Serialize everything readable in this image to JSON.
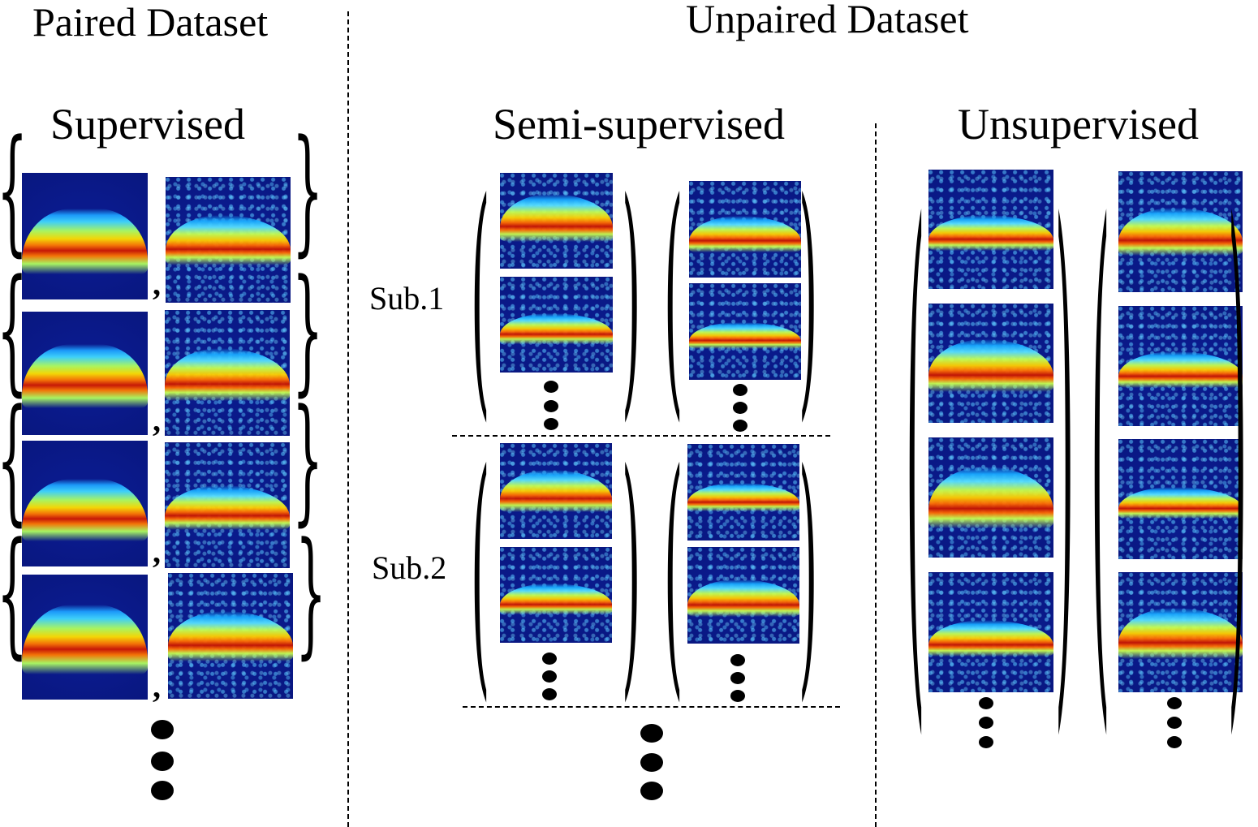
{
  "headings": {
    "paired": "Paired Dataset",
    "unpaired": "Unpaired Dataset",
    "supervised": "Supervised",
    "semi_supervised": "Semi-supervised",
    "unsupervised": "Unsupervised"
  },
  "subject_labels": {
    "sub1": "Sub.1",
    "sub2": "Sub.2"
  },
  "pair_separator": ","
}
